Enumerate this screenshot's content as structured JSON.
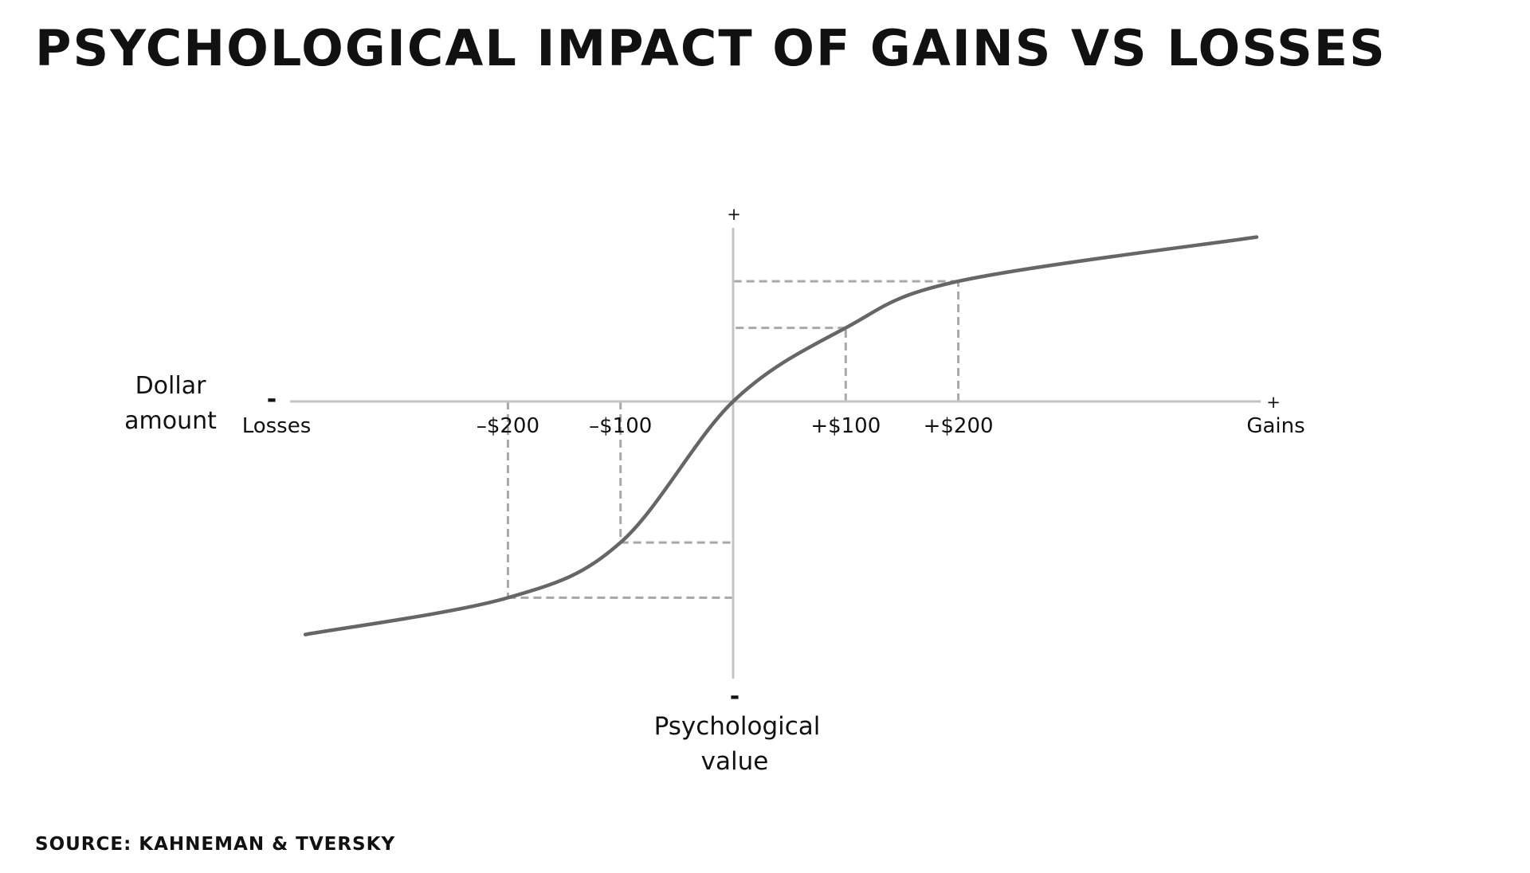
{
  "title": "PSYCHOLOGICAL IMPACT OF GAINS VS LOSSES",
  "source": "SOURCE: KAHNEMAN & TVERSKY",
  "colors": {
    "axis": "#c4c4c4",
    "curve": "#666666",
    "guides": "#a8a8a8",
    "text": "#111111"
  },
  "chart_data": {
    "type": "line",
    "x_axis": {
      "label": "Dollar amount",
      "negative_symbol": "-",
      "positive_symbol": "+",
      "negative_end_label": "Losses",
      "positive_end_label": "Gains",
      "ticks": [
        {
          "value": -200,
          "label": "–$200"
        },
        {
          "value": -100,
          "label": "–$100"
        },
        {
          "value": 100,
          "label": "+$100"
        },
        {
          "value": 200,
          "label": "+$200"
        }
      ]
    },
    "y_axis": {
      "label": [
        "Psychological",
        "value"
      ],
      "positive_symbol": "+",
      "negative_symbol": "-"
    },
    "xlim": [
      -380,
      465
    ],
    "ylim": [
      -230,
      150
    ],
    "curve": [
      {
        "x": -380,
        "y": -190
      },
      {
        "x": -200,
        "y": -160
      },
      {
        "x": -100,
        "y": -115
      },
      {
        "x": 0,
        "y": 0
      },
      {
        "x": 100,
        "y": 60
      },
      {
        "x": 200,
        "y": 98
      },
      {
        "x": 465,
        "y": 134
      }
    ],
    "guides": [
      {
        "x": -200,
        "y": -160
      },
      {
        "x": -100,
        "y": -115
      },
      {
        "x": 100,
        "y": 60
      },
      {
        "x": 200,
        "y": 98
      }
    ],
    "grid": false,
    "legend": "none"
  }
}
